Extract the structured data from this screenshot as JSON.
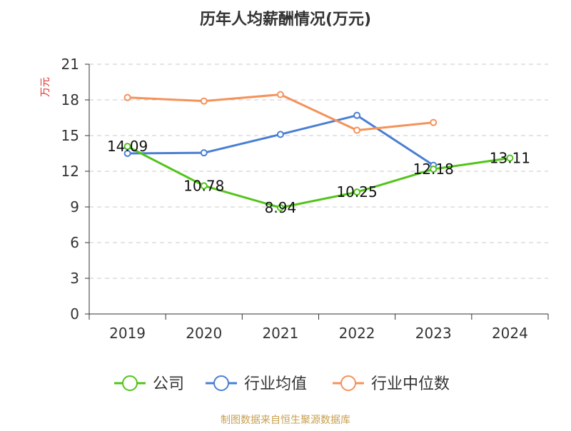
{
  "chart_data": {
    "type": "line",
    "title": "历年人均薪酬情况(万元)",
    "ylabel": "万元",
    "xlabel": "",
    "categories": [
      "2019",
      "2020",
      "2021",
      "2022",
      "2023",
      "2024"
    ],
    "ylim": [
      0,
      21
    ],
    "yticks": [
      0,
      3,
      6,
      9,
      12,
      15,
      18,
      21
    ],
    "grid": "horizontal dashed",
    "legend_position": "bottom",
    "series": [
      {
        "name": "公司",
        "color": "#52c41a",
        "values": [
          14.09,
          10.78,
          8.94,
          10.25,
          12.18,
          13.11
        ],
        "labels": [
          "14.09",
          "10.78",
          "8.94",
          "10.25",
          "12.18",
          "13.11"
        ]
      },
      {
        "name": "行业均值",
        "color": "#4a7fd4",
        "values": [
          13.5,
          13.55,
          15.1,
          16.7,
          12.5,
          null
        ]
      },
      {
        "name": "行业中位数",
        "color": "#f5925a",
        "values": [
          18.2,
          17.9,
          18.45,
          15.45,
          16.1,
          null
        ]
      }
    ]
  },
  "footer": {
    "source": "制图数据来自恒生聚源数据库"
  }
}
